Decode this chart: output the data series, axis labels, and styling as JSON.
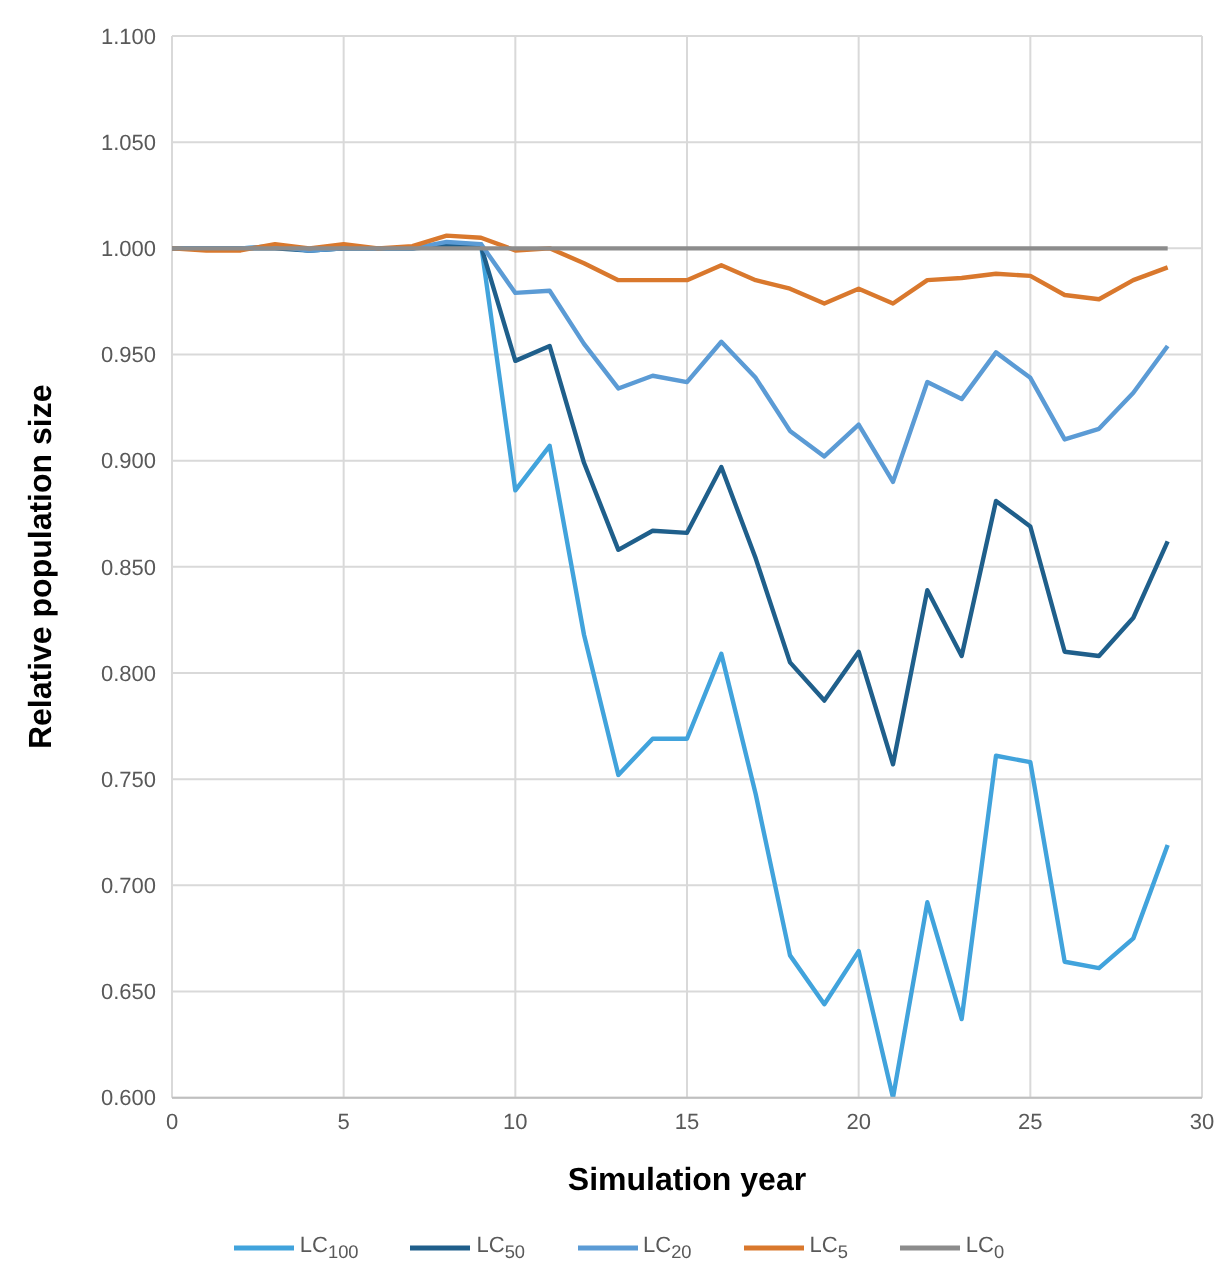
{
  "chart_data": {
    "type": "line",
    "xlabel": "Simulation year",
    "ylabel": "Relative population size",
    "x": [
      0,
      1,
      2,
      3,
      4,
      5,
      6,
      7,
      8,
      9,
      10,
      11,
      12,
      13,
      14,
      15,
      16,
      17,
      18,
      19,
      20,
      21,
      22,
      23,
      24,
      25,
      26,
      27,
      28,
      29
    ],
    "series": [
      {
        "name": "LC$_{100}$",
        "color": "#41a3dc",
        "values": [
          1.0,
          1.0,
          1.0,
          1.001,
          0.999,
          1.0,
          1.0,
          1.0,
          1.002,
          1.002,
          0.886,
          0.907,
          0.818,
          0.752,
          0.769,
          0.769,
          0.809,
          0.743,
          0.667,
          0.644,
          0.669,
          0.6,
          0.692,
          0.637,
          0.761,
          0.758,
          0.664,
          0.661,
          0.675,
          0.719
        ]
      },
      {
        "name": "LC$_{50}$",
        "color": "#1f5f8b",
        "values": [
          1.0,
          1.0,
          1.0,
          1.0,
          0.999,
          1.0,
          1.0,
          1.0,
          1.001,
          1.001,
          0.947,
          0.954,
          0.899,
          0.858,
          0.867,
          0.866,
          0.897,
          0.854,
          0.805,
          0.787,
          0.81,
          0.757,
          0.839,
          0.808,
          0.881,
          0.869,
          0.81,
          0.808,
          0.826,
          0.862
        ]
      },
      {
        "name": "LC$_{20}$",
        "color": "#5b9bd5",
        "values": [
          1.0,
          1.0,
          1.0,
          1.001,
          0.999,
          1.0,
          1.0,
          1.0,
          1.003,
          1.002,
          0.979,
          0.98,
          0.955,
          0.934,
          0.94,
          0.937,
          0.956,
          0.939,
          0.914,
          0.902,
          0.917,
          0.89,
          0.937,
          0.929,
          0.951,
          0.939,
          0.91,
          0.915,
          0.932,
          0.954
        ]
      },
      {
        "name": "LC$_{5}$",
        "color": "#d9782d",
        "values": [
          1.0,
          0.999,
          0.999,
          1.002,
          1.0,
          1.002,
          1.0,
          1.001,
          1.006,
          1.005,
          0.999,
          1.0,
          0.993,
          0.985,
          0.985,
          0.985,
          0.992,
          0.985,
          0.981,
          0.974,
          0.981,
          0.974,
          0.985,
          0.986,
          0.988,
          0.987,
          0.978,
          0.976,
          0.985,
          0.991
        ]
      },
      {
        "name": "LC$_{0}$",
        "color": "#8c8c8c",
        "values": [
          1.0,
          1.0,
          1.0,
          1.0,
          1.0,
          1.0,
          1.0,
          1.0,
          1.0,
          1.0,
          1.0,
          1.0,
          1.0,
          1.0,
          1.0,
          1.0,
          1.0,
          1.0,
          1.0,
          1.0,
          1.0,
          1.0,
          1.0,
          1.0,
          1.0,
          1.0,
          1.0,
          1.0,
          1.0,
          1.0
        ]
      }
    ],
    "xlim": [
      0,
      30
    ],
    "xticks": [
      0,
      5,
      10,
      15,
      20,
      25,
      30
    ],
    "ylim": [
      0.6,
      1.1
    ],
    "yticks": [
      {
        "value": 0.6,
        "label": "0.600"
      },
      {
        "value": 0.65,
        "label": "0.650"
      },
      {
        "value": 0.7,
        "label": "0.700"
      },
      {
        "value": 0.75,
        "label": "0.750"
      },
      {
        "value": 0.8,
        "label": "0.800"
      },
      {
        "value": 0.85,
        "label": "0.850"
      },
      {
        "value": 0.9,
        "label": "0.900"
      },
      {
        "value": 0.95,
        "label": "0.950"
      },
      {
        "value": 1.0,
        "label": "1.000"
      },
      {
        "value": 1.05,
        "label": "1.050"
      },
      {
        "value": 1.1,
        "label": "1.100"
      }
    ],
    "grid": true,
    "legend": "bottom",
    "marker": "none",
    "line_style": "solid"
  }
}
